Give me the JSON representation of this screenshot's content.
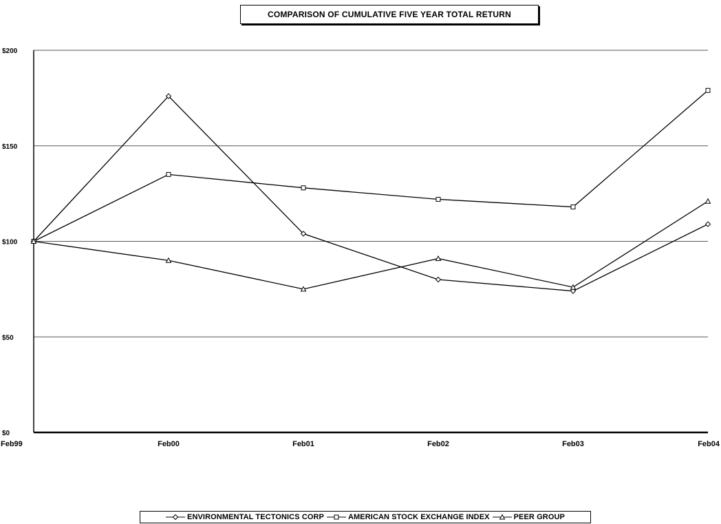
{
  "chart_data": {
    "type": "line",
    "title": "COMPARISON OF CUMULATIVE FIVE YEAR TOTAL RETURN",
    "xlabel": "",
    "ylabel": "",
    "categories": [
      "Feb99",
      "Feb00",
      "Feb01",
      "Feb02",
      "Feb03",
      "Feb04"
    ],
    "yticks": [
      "$0",
      "$50",
      "$100",
      "$150",
      "$200"
    ],
    "ylim": [
      0,
      200
    ],
    "grid": true,
    "legend_position": "bottom",
    "series": [
      {
        "name": "ENVIRONMENTAL TECTONICS CORP",
        "marker": "diamond",
        "values": [
          100,
          176,
          104,
          80,
          74,
          109
        ]
      },
      {
        "name": "AMERICAN STOCK EXCHANGE INDEX",
        "marker": "square",
        "values": [
          100,
          135,
          128,
          122,
          118,
          179
        ]
      },
      {
        "name": "PEER GROUP",
        "marker": "triangle",
        "values": [
          100,
          90,
          75,
          91,
          76,
          121
        ]
      }
    ]
  }
}
